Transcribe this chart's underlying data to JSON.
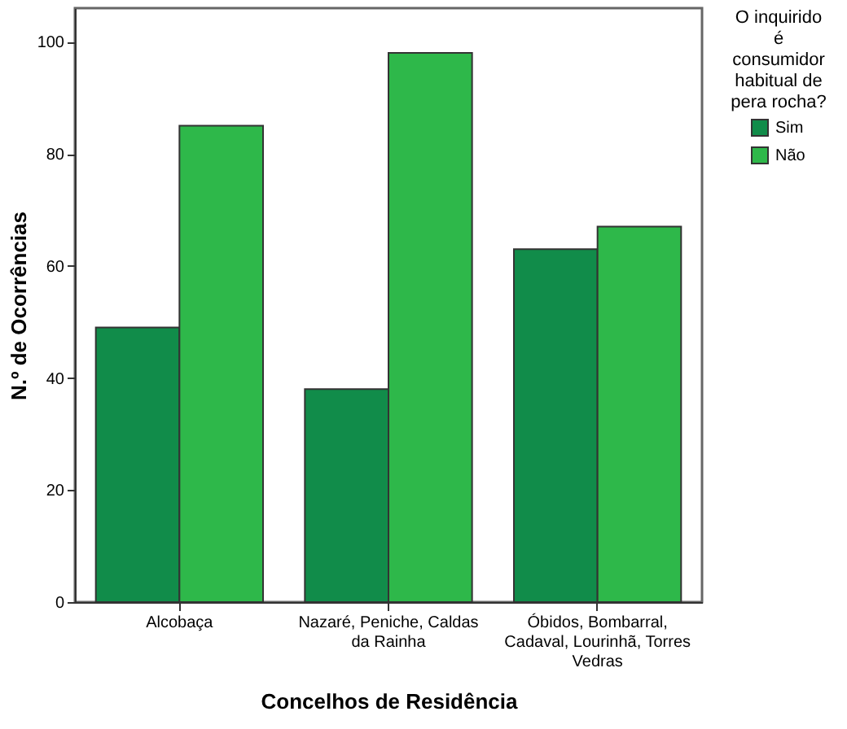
{
  "chart_data": {
    "type": "bar",
    "xlabel": "Concelhos de Residência",
    "ylabel": "N.º de Ocorrências",
    "legend_title": "O inquirido é consumidor habitual de pera rocha?",
    "categories": [
      "Alcobaça",
      "Nazaré, Peniche, Caldas da Rainha",
      "Óbidos,  Bombarral, Cadaval, Lourinhã, Torres Vedras"
    ],
    "series": [
      {
        "name": "Sim",
        "color": "#118c4a",
        "values": [
          49,
          38,
          63
        ]
      },
      {
        "name": "Não",
        "color": "#2eb84a",
        "values": [
          85,
          98,
          67
        ]
      }
    ],
    "ylim": [
      0,
      106
    ],
    "yticks": [
      0,
      20,
      40,
      60,
      80,
      100
    ],
    "grid": false,
    "legend": "top right"
  }
}
